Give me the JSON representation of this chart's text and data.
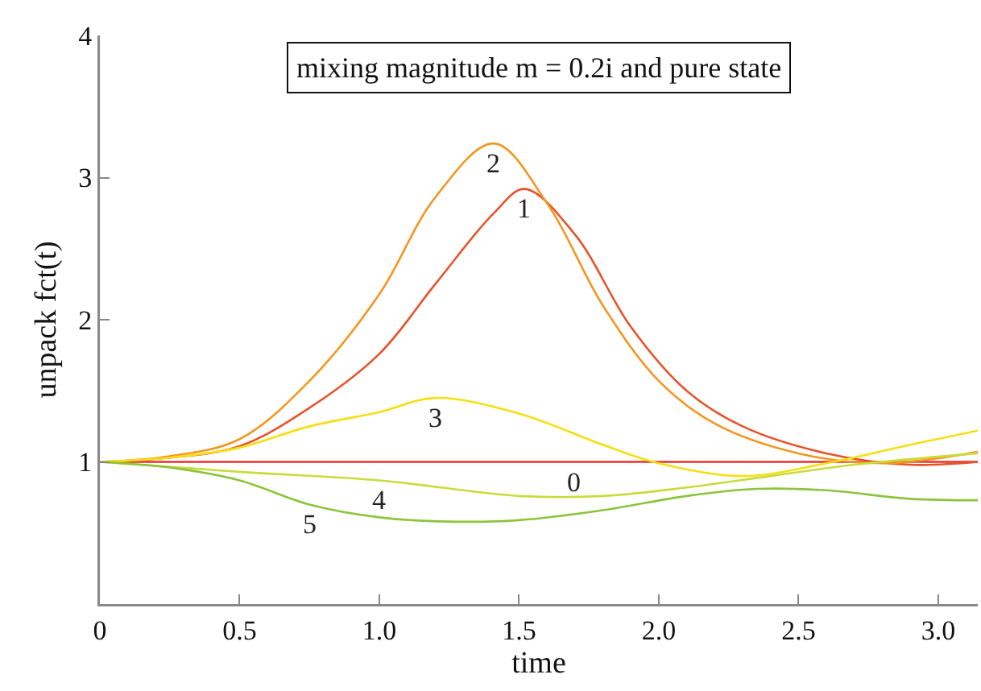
{
  "chart_data": {
    "type": "line",
    "title": "mixing magnitude m = 0.2i and pure state",
    "xlabel": "time",
    "ylabel": "unpack fct(t)",
    "xlim": [
      0,
      3.1416
    ],
    "ylim": [
      0,
      4
    ],
    "xticks": [
      0,
      {
        "value": 0.5,
        "label": "0.5"
      },
      {
        "value": 1,
        "label": "1.0"
      },
      {
        "value": 1.5,
        "label": "1.5"
      },
      {
        "value": 2,
        "label": "2.0"
      },
      {
        "value": 2.5,
        "label": "2.5"
      },
      {
        "value": 3,
        "label": "3.0"
      }
    ],
    "yticks": [
      {
        "value": 0,
        "label": null
      },
      1,
      2,
      3,
      4
    ],
    "grid": false,
    "marker": "none",
    "line_style": "solid",
    "series": [
      {
        "color": "#e8302a",
        "x": [
          0,
          3.1416
        ],
        "values": [
          1,
          1
        ]
      },
      {
        "color": "#e8522a",
        "x": [
          0,
          0.25,
          0.5,
          0.75,
          1.0,
          1.2,
          1.41,
          1.52,
          1.7,
          1.9,
          2.1,
          2.3,
          2.6,
          2.9,
          3.1416
        ],
        "values": [
          1,
          1.03,
          1.11,
          1.38,
          1.76,
          2.25,
          2.75,
          2.92,
          2.6,
          1.95,
          1.5,
          1.25,
          1.06,
          0.98,
          1.0
        ]
      },
      {
        "color": "#f5961e",
        "x": [
          0,
          0.25,
          0.5,
          0.75,
          1.0,
          1.2,
          1.41,
          1.6,
          1.8,
          2.0,
          2.2,
          2.5,
          2.8,
          3.1416
        ],
        "values": [
          1,
          1.04,
          1.16,
          1.57,
          2.18,
          2.86,
          3.24,
          2.82,
          2.1,
          1.57,
          1.27,
          1.06,
          0.99,
          1.07
        ]
      },
      {
        "color": "#f5e012",
        "x": [
          0,
          0.25,
          0.5,
          0.75,
          1.0,
          1.2,
          1.5,
          1.8,
          2.0,
          2.3,
          2.6,
          2.9,
          3.1416
        ],
        "values": [
          1,
          1.03,
          1.1,
          1.25,
          1.35,
          1.45,
          1.34,
          1.12,
          0.99,
          0.9,
          0.99,
          1.12,
          1.22
        ]
      },
      {
        "color": "#c8dc3c",
        "x": [
          0,
          0.5,
          1.0,
          1.5,
          1.8,
          2.1,
          2.4,
          2.7,
          3.1416
        ],
        "values": [
          1,
          0.93,
          0.87,
          0.76,
          0.76,
          0.82,
          0.9,
          0.98,
          1.06
        ]
      },
      {
        "color": "#8cc43c",
        "x": [
          0,
          0.25,
          0.5,
          0.75,
          1.0,
          1.25,
          1.5,
          1.8,
          2.1,
          2.35,
          2.6,
          2.9,
          3.1416
        ],
        "values": [
          1,
          0.96,
          0.87,
          0.7,
          0.61,
          0.58,
          0.59,
          0.66,
          0.76,
          0.81,
          0.8,
          0.74,
          0.73
        ]
      }
    ],
    "annotations": [
      {
        "text": "0",
        "x": 1.7,
        "y": 1
      },
      {
        "text": "1",
        "x": 1.52,
        "y": 2.92
      },
      {
        "text": "2",
        "x": 1.41,
        "y": 3.24
      },
      {
        "text": "3",
        "x": 1.2,
        "y": 1.45
      },
      {
        "text": "4",
        "x": 1.0,
        "y": 0.87
      },
      {
        "text": "5",
        "x": 0.75,
        "y": 0.7
      }
    ]
  }
}
